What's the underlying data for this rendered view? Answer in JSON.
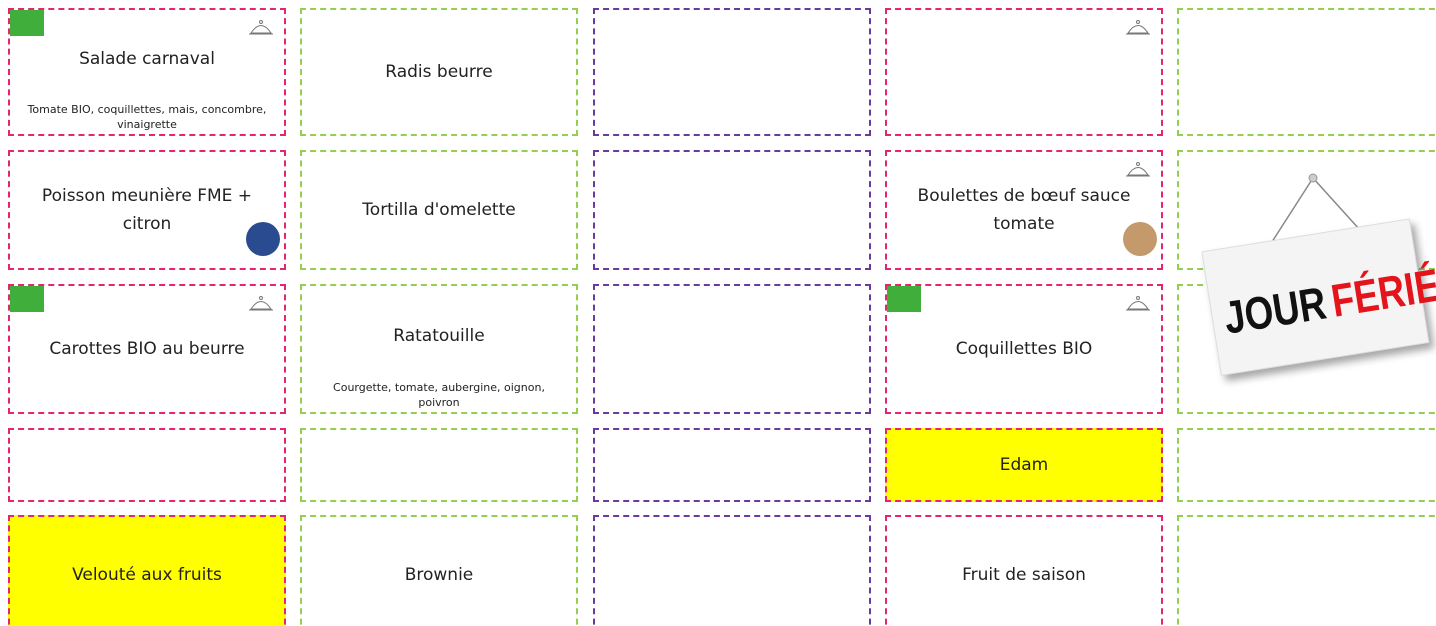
{
  "menu": {
    "rows": [
      [
        {
          "title": "Salade carnaval",
          "description": "Tomate BIO, coquillettes, mais, concombre, vinaigrette",
          "bio": true,
          "cloche": true
        },
        {
          "title": "Radis beurre"
        },
        null,
        {
          "cloche": true
        },
        null
      ],
      [
        {
          "title": "Poisson meunière FME + citron",
          "fme": true
        },
        {
          "title": "Tortilla d'omelette"
        },
        null,
        {
          "title": "Boulettes de bœuf sauce tomate",
          "cloche": true,
          "label": true
        },
        null
      ],
      [
        {
          "title": "Carottes BIO au beurre",
          "bio": true,
          "cloche": true
        },
        {
          "title": "Ratatouille",
          "description": "Courgette, tomate, aubergine, oignon, poivron"
        },
        null,
        {
          "title": "Coquillettes BIO",
          "bio": true,
          "cloche": true
        },
        null
      ],
      [
        null,
        null,
        null,
        {
          "title": "Edam",
          "highlight": true
        },
        null
      ],
      [
        {
          "title": "Velouté aux fruits",
          "highlight": true
        },
        {
          "title": "Brownie"
        },
        null,
        {
          "title": "Fruit de saison"
        },
        null
      ]
    ],
    "column_colors": [
      "#e3266f",
      "#93d04f",
      "#6b3a9e",
      "#e3266f",
      "#93d04f"
    ],
    "sign": {
      "word1": "JOUR",
      "word2": "FÉRIÉ"
    }
  }
}
